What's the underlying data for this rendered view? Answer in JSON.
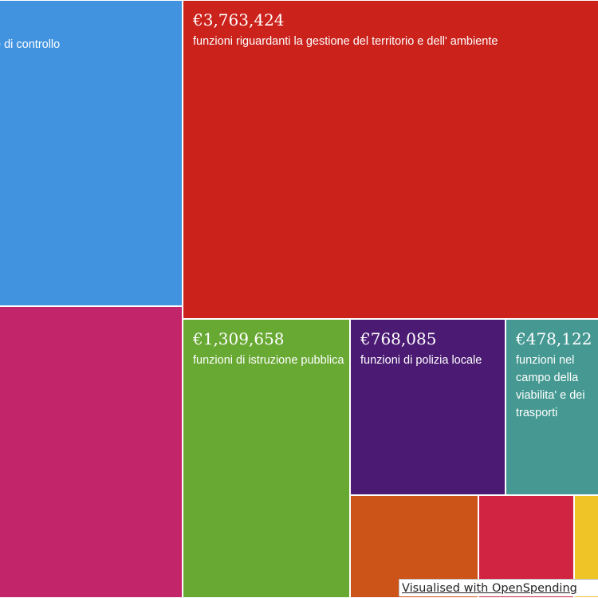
{
  "chart_data": {
    "type": "treemap",
    "currency": "€",
    "items": [
      {
        "label": "e di controllo",
        "amount": "",
        "value": null,
        "color": "#4193e0"
      },
      {
        "label": "funzioni riguardanti la gestione del territorio e dell' ambiente",
        "amount": "€3,763,424",
        "value": 3763424,
        "color": "#cb231c"
      },
      {
        "label": "",
        "amount": "",
        "value": null,
        "color": "#c3256a"
      },
      {
        "label": "funzioni di istruzione pubblica",
        "amount": "€1,309,658",
        "value": 1309658,
        "color": "#68a933"
      },
      {
        "label": "funzioni di polizia locale",
        "amount": "€768,085",
        "value": 768085,
        "color": "#4b1b73"
      },
      {
        "label": "funzioni nel campo della viabilita' e dei trasporti",
        "amount": "€478,122",
        "value": 478122,
        "color": "#459992"
      },
      {
        "label": "",
        "amount": "",
        "value": null,
        "color": "#cd5419"
      },
      {
        "label": "",
        "amount": "",
        "value": null,
        "color": "#d12342"
      },
      {
        "label": "",
        "amount": "",
        "value": null,
        "color": "#eec427"
      }
    ]
  },
  "credit": "Visualised with OpenSpending"
}
